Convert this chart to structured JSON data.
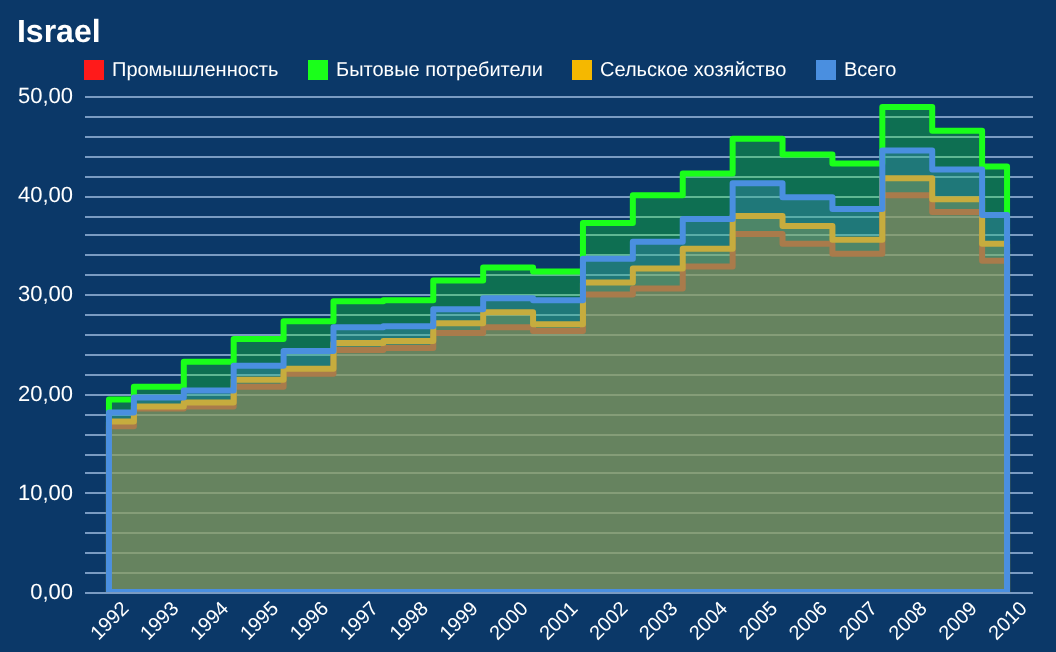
{
  "chart_data": {
    "type": "area",
    "title": "Israel",
    "categories": [
      "1992",
      "1993",
      "1994",
      "1995",
      "1996",
      "1997",
      "1998",
      "1999",
      "2000",
      "2001",
      "2002",
      "2003",
      "2004",
      "2005",
      "2006",
      "2007",
      "2008",
      "2009",
      "2010"
    ],
    "series": [
      {
        "name": "Промышленность",
        "color": "#ff1a1a",
        "values": [
          16.7,
          18.5,
          18.7,
          20.7,
          22.0,
          24.4,
          24.6,
          26.1,
          26.7,
          26.3,
          30.0,
          30.6,
          32.8,
          36.1,
          35.1,
          34.1,
          40.0,
          38.3,
          33.4
        ]
      },
      {
        "name": "Бытовые потребители",
        "color": "#1aff1a",
        "values": [
          19.4,
          20.7,
          23.2,
          25.5,
          27.3,
          29.3,
          29.4,
          31.4,
          32.7,
          32.3,
          37.2,
          40.0,
          42.2,
          45.7,
          44.1,
          43.2,
          48.9,
          46.5,
          42.9
        ]
      },
      {
        "name": "Сельское хозяйство",
        "color": "#f5b800",
        "values": [
          17.2,
          18.7,
          19.1,
          21.4,
          22.5,
          25.1,
          25.3,
          27.1,
          28.2,
          27.0,
          31.2,
          32.6,
          34.6,
          37.9,
          36.9,
          35.5,
          41.7,
          39.6,
          35.1
        ]
      },
      {
        "name": "Всего",
        "color": "#4a8fe0",
        "values": [
          18.1,
          19.6,
          20.3,
          22.8,
          24.3,
          26.7,
          26.8,
          28.5,
          29.6,
          29.4,
          33.6,
          35.3,
          37.6,
          41.2,
          39.8,
          38.6,
          44.5,
          42.6,
          38.0
        ]
      }
    ],
    "ylim": [
      0,
      50
    ],
    "yticks": [
      {
        "value": 0,
        "label": "0,00"
      },
      {
        "value": 2,
        "label": null
      },
      {
        "value": 4,
        "label": null
      },
      {
        "value": 6,
        "label": null
      },
      {
        "value": 8,
        "label": null
      },
      {
        "value": 10,
        "label": "10,00"
      },
      {
        "value": 12,
        "label": null
      },
      {
        "value": 14,
        "label": null
      },
      {
        "value": 16,
        "label": null
      },
      {
        "value": 18,
        "label": null
      },
      {
        "value": 20,
        "label": "20,00"
      },
      {
        "value": 22,
        "label": null
      },
      {
        "value": 24,
        "label": null
      },
      {
        "value": 26,
        "label": null
      },
      {
        "value": 28,
        "label": null
      },
      {
        "value": 30,
        "label": "30,00"
      },
      {
        "value": 32,
        "label": null
      },
      {
        "value": 34,
        "label": null
      },
      {
        "value": 36,
        "label": null
      },
      {
        "value": 38,
        "label": null
      },
      {
        "value": 40,
        "label": "40,00"
      },
      {
        "value": 42,
        "label": null
      },
      {
        "value": 44,
        "label": null
      },
      {
        "value": 46,
        "label": null
      },
      {
        "value": 48,
        "label": null
      },
      {
        "value": 50,
        "label": "50,00"
      }
    ],
    "grid": "y",
    "legend": "top left",
    "line_style": "solid"
  }
}
